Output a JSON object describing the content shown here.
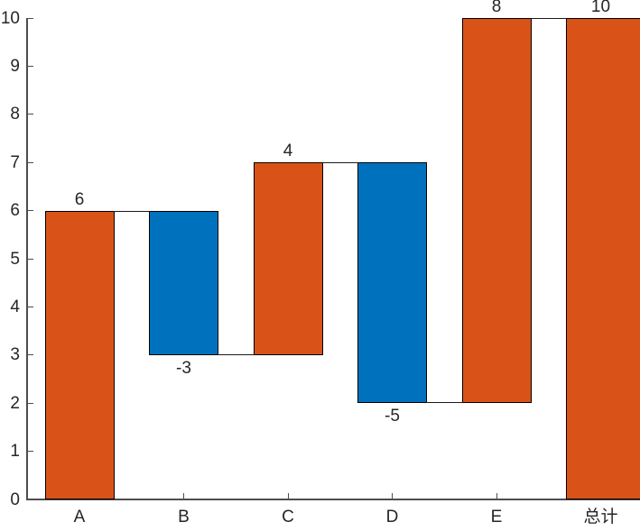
{
  "chart_data": {
    "type": "bar",
    "subtype": "waterfall",
    "title": "",
    "xlabel": "",
    "ylabel": "",
    "categories": [
      "A",
      "B",
      "C",
      "D",
      "E",
      "总计"
    ],
    "values": [
      6,
      -3,
      4,
      -5,
      8,
      10
    ],
    "data_labels": [
      "6",
      "-3",
      "4",
      "-5",
      "8",
      "10"
    ],
    "bar_starts": [
      0,
      6,
      3,
      7,
      2,
      0
    ],
    "bar_ends": [
      6,
      3,
      7,
      2,
      10,
      10
    ],
    "bar_roles": [
      "increase",
      "decrease",
      "increase",
      "decrease",
      "increase",
      "total"
    ],
    "bar_colors": [
      "#D95319",
      "#0072BD",
      "#D95319",
      "#0072BD",
      "#D95319",
      "#D95319"
    ],
    "increase_color": "#D95319",
    "decrease_color": "#0072BD",
    "total_color": "#D95319",
    "edge_color": "#000000",
    "connector_color": "#1a1a1a",
    "axis_color": "#4d4d4d",
    "text_color": "#262626",
    "background": "#FFFFFF",
    "ylim": [
      0,
      10
    ],
    "y_ticks": [
      "0",
      "1",
      "2",
      "3",
      "4",
      "5",
      "6",
      "7",
      "8",
      "9",
      "10"
    ],
    "grid": false,
    "legend": null,
    "tick_dir": "in",
    "box": false
  }
}
